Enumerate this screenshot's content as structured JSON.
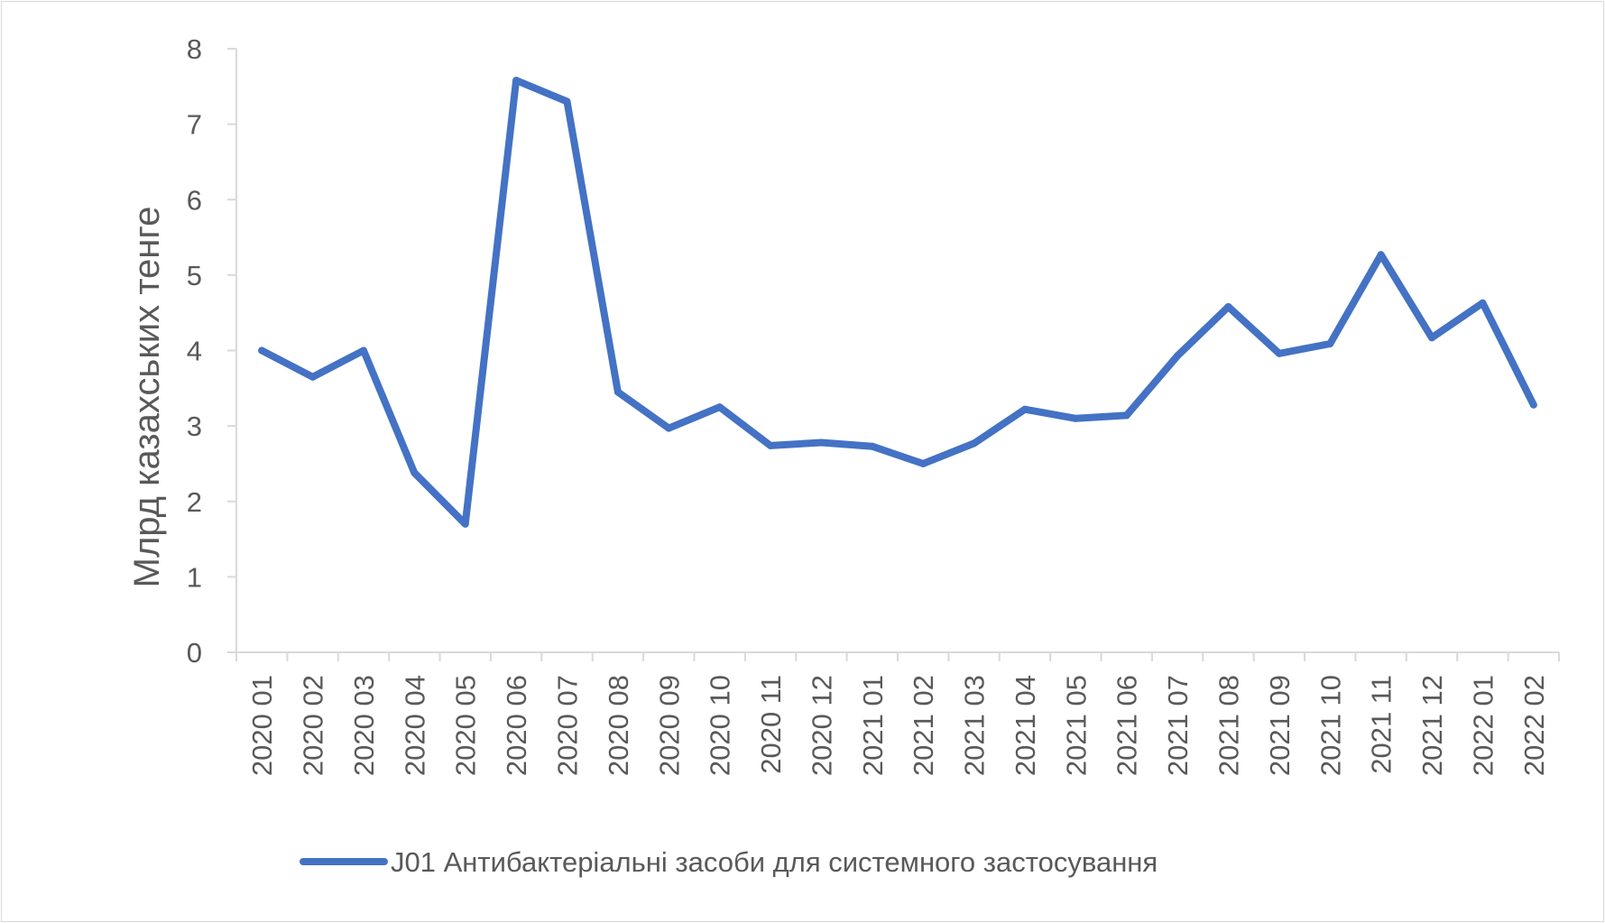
{
  "chart_data": {
    "type": "line",
    "title": "",
    "xlabel": "",
    "ylabel": "Млрд казахських тенге",
    "ylim": [
      0,
      8
    ],
    "yticks": [
      0,
      1,
      2,
      3,
      4,
      5,
      6,
      7,
      8
    ],
    "grid": false,
    "legend_position": "bottom",
    "categories": [
      "2020 01",
      "2020 02",
      "2020 03",
      "2020 04",
      "2020 05",
      "2020 06",
      "2020 07",
      "2020 08",
      "2020 09",
      "2020 10",
      "2020 11",
      "2020 12",
      "2021 01",
      "2021 02",
      "2021 03",
      "2021 04",
      "2021 05",
      "2021 06",
      "2021 07",
      "2021 08",
      "2021 09",
      "2021 10",
      "2021 11",
      "2021 12",
      "2022 01",
      "2022 02"
    ],
    "series": [
      {
        "name": "J01 Антибактеріальні засоби для системного застосування",
        "color": "#4472c4",
        "values": [
          4.0,
          3.65,
          4.0,
          2.38,
          1.7,
          7.58,
          7.3,
          3.45,
          2.97,
          3.25,
          2.74,
          2.78,
          2.73,
          2.5,
          2.77,
          3.22,
          3.1,
          3.14,
          3.93,
          4.58,
          3.96,
          4.09,
          5.27,
          4.17,
          4.63,
          3.28
        ]
      }
    ]
  }
}
